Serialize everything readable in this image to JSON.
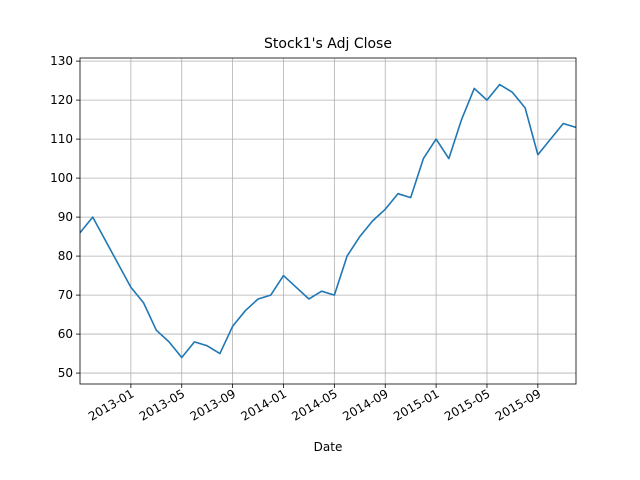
{
  "chart_data": {
    "type": "line",
    "title": "Stock1's Adj Close",
    "xlabel": "Date",
    "x": [
      "2012-09",
      "2012-10",
      "2012-11",
      "2012-12",
      "2013-01",
      "2013-02",
      "2013-03",
      "2013-04",
      "2013-05",
      "2013-06",
      "2013-07",
      "2013-08",
      "2013-09",
      "2013-10",
      "2013-11",
      "2013-12",
      "2014-01",
      "2014-02",
      "2014-03",
      "2014-04",
      "2014-05",
      "2014-06",
      "2014-07",
      "2014-08",
      "2014-09",
      "2014-10",
      "2014-11",
      "2014-12",
      "2015-01",
      "2015-02",
      "2015-03",
      "2015-04",
      "2015-05",
      "2015-06",
      "2015-07",
      "2015-08",
      "2015-09",
      "2015-10",
      "2015-11",
      "2015-12"
    ],
    "values": [
      86,
      90,
      84,
      78,
      72,
      68,
      61,
      58,
      54,
      58,
      57,
      55,
      62,
      66,
      69,
      70,
      75,
      72,
      69,
      71,
      70,
      80,
      85,
      89,
      92,
      96,
      95,
      105,
      110,
      105,
      115,
      123,
      120,
      124,
      122,
      118,
      106,
      110,
      114,
      113
    ],
    "color": "#1f77b4",
    "xlim": [
      "2012-09",
      "2015-12"
    ],
    "xticks": [
      "2013-01",
      "2013-05",
      "2013-09",
      "2014-01",
      "2014-05",
      "2014-09",
      "2015-01",
      "2015-05",
      "2015-09"
    ],
    "ylim": [
      47.2,
      130.8
    ],
    "yticks": [
      50,
      60,
      70,
      80,
      90,
      100,
      110,
      120,
      130
    ],
    "grid": true
  }
}
